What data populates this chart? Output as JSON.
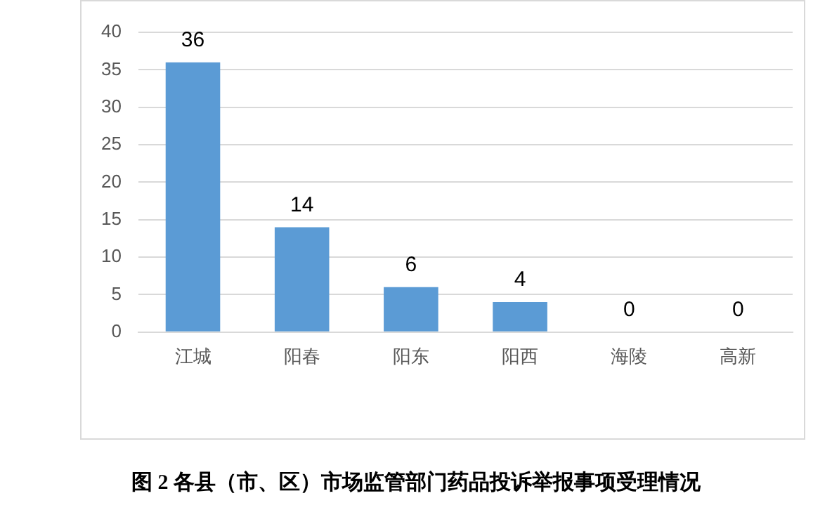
{
  "chart_data": {
    "type": "bar",
    "title": "图 2 各县（市、区）市场监管部门药品投诉举报事项受理情况",
    "categories": [
      "江城",
      "阳春",
      "阳东",
      "阳西",
      "海陵",
      "高新"
    ],
    "values": [
      36,
      14,
      6,
      4,
      0,
      0
    ],
    "color": "#5b9bd5",
    "ylim": [
      0,
      40
    ],
    "yticks": [
      0,
      5,
      10,
      15,
      20,
      25,
      30,
      35,
      40
    ],
    "grid": "y",
    "data_labels": true
  }
}
